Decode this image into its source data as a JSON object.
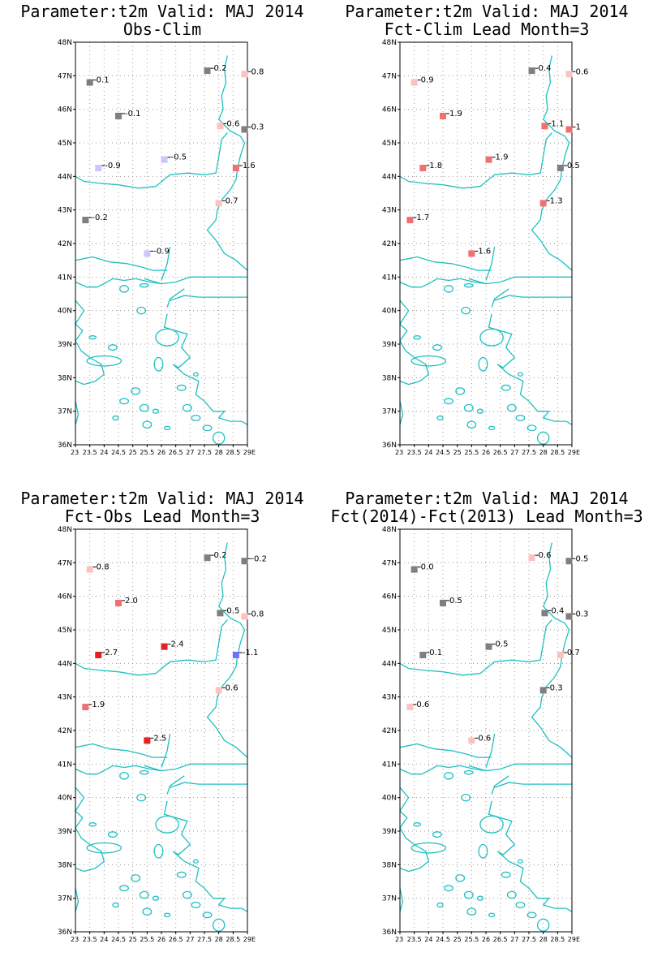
{
  "axes": {
    "lon_min": 23,
    "lon_max": 29,
    "lat_min": 36,
    "lat_max": 48,
    "y_ticks": [
      "36N",
      "37N",
      "38N",
      "39N",
      "40N",
      "41N",
      "42N",
      "43N",
      "44N",
      "45N",
      "46N",
      "47N",
      "48N"
    ],
    "y_tick_values": [
      36,
      37,
      38,
      39,
      40,
      41,
      42,
      43,
      44,
      45,
      46,
      47,
      48
    ],
    "x_ticks": [
      "23",
      "23.5",
      "24",
      "24.5",
      "25",
      "25.5",
      "26",
      "26.5",
      "27",
      "27.5",
      "28",
      "28.5",
      "29E"
    ],
    "x_tick_values": [
      23,
      23.5,
      24,
      24.5,
      25,
      25.5,
      26,
      26.5,
      27,
      27.5,
      28,
      28.5,
      29
    ]
  },
  "colors": {
    "coast": "#20c0c0",
    "grid": "#999999",
    "scale": {
      "-1.1": "#7070ff",
      "-0.9": "#c8c8ff",
      "-0.5": "#c8c8ff",
      "neutral": "#7f7f7f",
      "0.6": "#ffc0c0",
      "0.7": "#ffc0c0",
      "0.8": "#ffc0c0",
      "0.9": "#ffc0c0",
      "1.1": "#f07070",
      "1.3": "#f07070",
      "1.6": "#f07070",
      "1.7": "#f07070",
      "1.8": "#f07070",
      "1.9": "#f07070",
      "2.0": "#f07070",
      "2.4": "#e82020",
      "2.5": "#e82020",
      "2.7": "#e82020"
    }
  },
  "stations": [
    {
      "lon": 23.5,
      "lat": 46.8
    },
    {
      "lon": 24.5,
      "lat": 45.8
    },
    {
      "lon": 27.6,
      "lat": 47.15
    },
    {
      "lon": 28.9,
      "lat": 47.05
    },
    {
      "lon": 28.05,
      "lat": 45.5
    },
    {
      "lon": 28.9,
      "lat": 45.4
    },
    {
      "lon": 23.8,
      "lat": 44.25
    },
    {
      "lon": 26.1,
      "lat": 44.5
    },
    {
      "lon": 28.6,
      "lat": 44.25
    },
    {
      "lon": 28.0,
      "lat": 43.2
    },
    {
      "lon": 23.35,
      "lat": 42.7
    },
    {
      "lon": 25.5,
      "lat": 41.7
    }
  ],
  "chart_data": [
    {
      "type": "map-scatter",
      "title": "Parameter:t2m Valid: MAJ 2014",
      "subtitle": "Obs-Clim",
      "values": [
        "0.1",
        "-0.1",
        "0.2",
        "0.8",
        "0.6",
        "0.3",
        "-0.9",
        "-0.5",
        "1.6",
        "0.7",
        "-0.2",
        "-0.9"
      ],
      "colors": [
        "#7f7f7f",
        "#7f7f7f",
        "#7f7f7f",
        "#ffc0c0",
        "#ffc0c0",
        "#7f7f7f",
        "#c8c8ff",
        "#c8c8ff",
        "#f07070",
        "#ffc0c0",
        "#7f7f7f",
        "#c8c8ff"
      ]
    },
    {
      "type": "map-scatter",
      "title": "Parameter:t2m Valid: MAJ 2014",
      "subtitle": "Fct-Clim Lead Month=3",
      "values": [
        "0.9",
        "1.9",
        "0.4",
        "0.6",
        "1.1",
        "1",
        "1.8",
        "1.9",
        "0.5",
        "1.3",
        "1.7",
        "1.6"
      ],
      "colors": [
        "#ffc0c0",
        "#f07070",
        "#7f7f7f",
        "#ffc0c0",
        "#f07070",
        "#f07070",
        "#f07070",
        "#f07070",
        "#7f7f7f",
        "#f07070",
        "#f07070",
        "#f07070"
      ]
    },
    {
      "type": "map-scatter",
      "title": "Parameter:t2m Valid: MAJ 2014",
      "subtitle": "Fct-Obs Lead Month=3",
      "values": [
        "0.8",
        "2.0",
        "0.2",
        "-0.2",
        "0.5",
        "0.8",
        "2.7",
        "2.4",
        "-1.1",
        "0.6",
        "1.9",
        "2.5"
      ],
      "colors": [
        "#ffc0c0",
        "#f07070",
        "#7f7f7f",
        "#7f7f7f",
        "#7f7f7f",
        "#ffc0c0",
        "#e82020",
        "#e82020",
        "#7070ff",
        "#ffc0c0",
        "#f07070",
        "#e82020"
      ]
    },
    {
      "type": "map-scatter",
      "title": "Parameter:t2m Valid: MAJ 2014",
      "subtitle": "Fct(2014)-Fct(2013) Lead Month=3",
      "values": [
        "0.0",
        "0.5",
        "0.6",
        "0.5",
        "0.4",
        "0.3",
        "0.1",
        "0.5",
        "0.7",
        "0.3",
        "0.6",
        "0.6"
      ],
      "colors": [
        "#7f7f7f",
        "#7f7f7f",
        "#ffc0c0",
        "#7f7f7f",
        "#7f7f7f",
        "#7f7f7f",
        "#7f7f7f",
        "#7f7f7f",
        "#ffc0c0",
        "#7f7f7f",
        "#ffc0c0",
        "#ffc0c0"
      ]
    }
  ]
}
